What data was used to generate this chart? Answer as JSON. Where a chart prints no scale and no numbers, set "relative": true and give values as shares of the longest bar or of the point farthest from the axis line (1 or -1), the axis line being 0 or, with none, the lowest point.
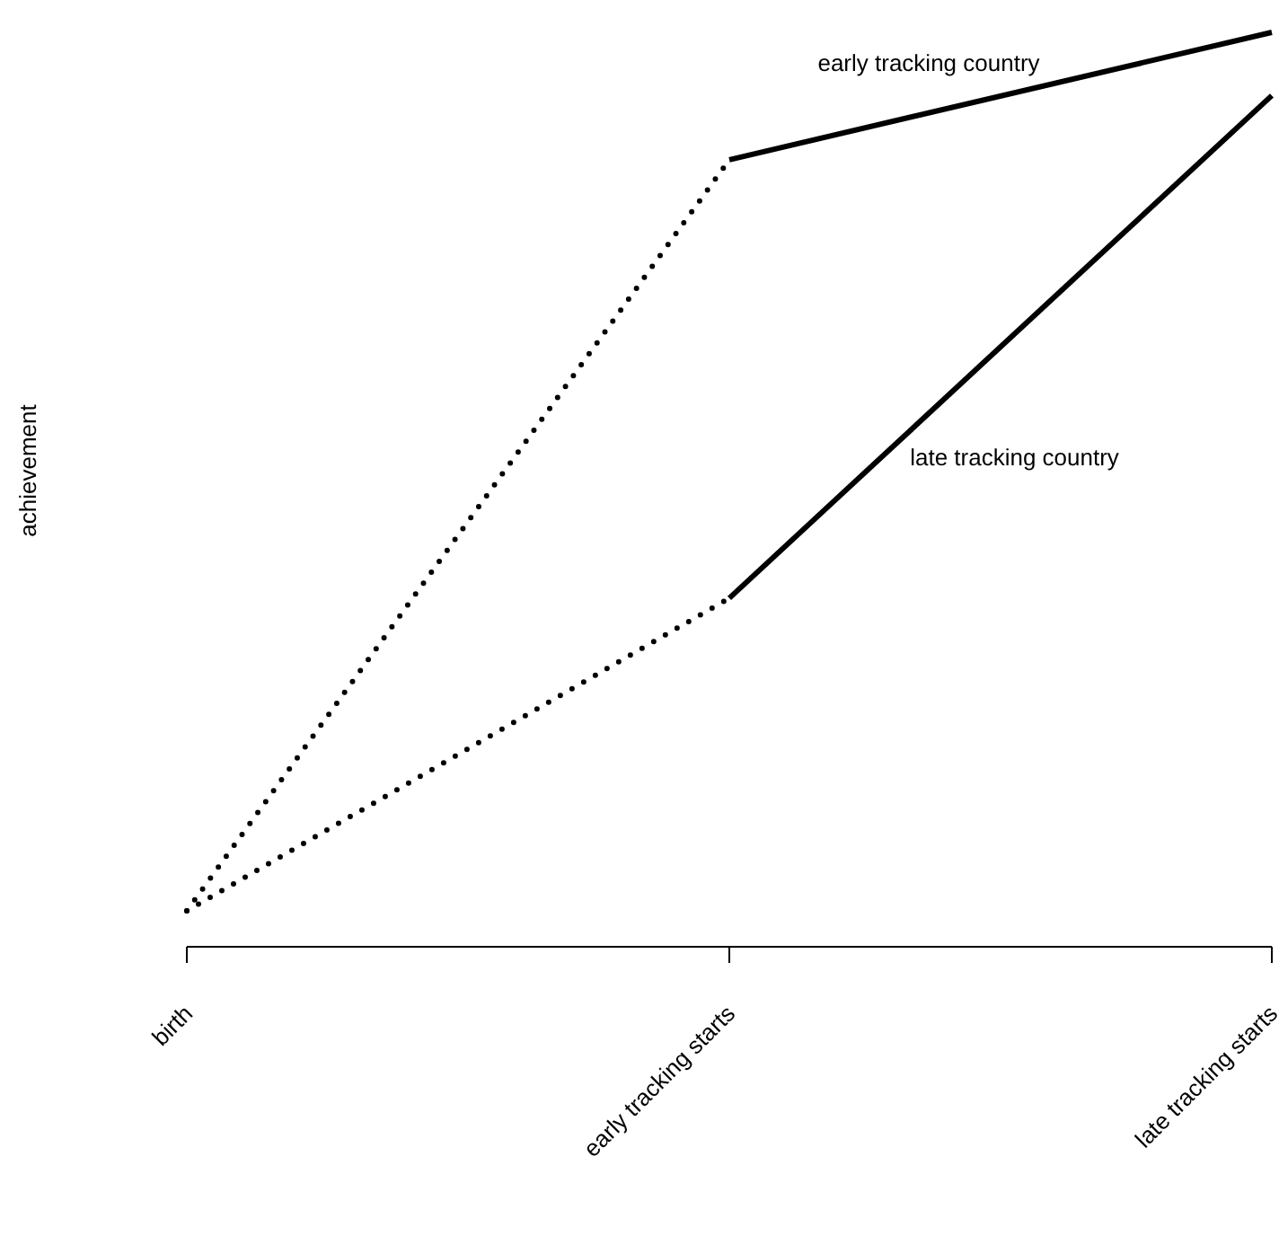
{
  "chart_data": {
    "type": "line",
    "relative": true,
    "ylabel": "achievement",
    "categories": [
      "birth",
      "early tracking starts",
      "late tracking starts"
    ],
    "series": [
      {
        "color": "#000000",
        "line_style": "dotted",
        "values": [
          0,
          0.855,
          null
        ]
      },
      {
        "color": "#000000",
        "line_style": "dotted",
        "values": [
          0,
          0.356,
          null
        ]
      },
      {
        "name": "early tracking country",
        "color": "#000000",
        "line_style": "solid",
        "values": [
          null,
          0.855,
          1
        ]
      },
      {
        "name": "late tracking country",
        "color": "#000000",
        "line_style": "solid",
        "values": [
          null,
          0.356,
          0.928
        ]
      }
    ],
    "grid": false,
    "marker": "none"
  }
}
